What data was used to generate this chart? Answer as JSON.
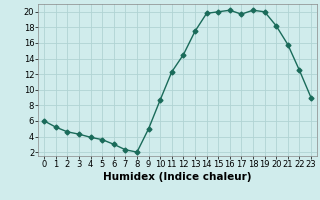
{
  "x": [
    0,
    1,
    2,
    3,
    4,
    5,
    6,
    7,
    8,
    9,
    10,
    11,
    12,
    13,
    14,
    15,
    16,
    17,
    18,
    19,
    20,
    21,
    22,
    23
  ],
  "y": [
    6,
    5.2,
    4.6,
    4.3,
    3.9,
    3.6,
    3.0,
    2.3,
    2.0,
    5.0,
    8.7,
    12.3,
    14.5,
    17.5,
    19.8,
    20.0,
    20.2,
    19.7,
    20.2,
    20.0,
    18.2,
    15.8,
    12.5,
    9.0
  ],
  "line_color": "#1a6b5a",
  "bg_color": "#d0ecec",
  "grid_color": "#b0d4d4",
  "xlabel": "Humidex (Indice chaleur)",
  "ylim": [
    1.5,
    21.0
  ],
  "xlim": [
    -0.5,
    23.5
  ],
  "yticks": [
    2,
    4,
    6,
    8,
    10,
    12,
    14,
    16,
    18,
    20
  ],
  "xticks": [
    0,
    1,
    2,
    3,
    4,
    5,
    6,
    7,
    8,
    9,
    10,
    11,
    12,
    13,
    14,
    15,
    16,
    17,
    18,
    19,
    20,
    21,
    22,
    23
  ],
  "marker": "D",
  "markersize": 2.5,
  "linewidth": 1.0,
  "xlabel_fontsize": 7.5,
  "tick_fontsize": 6.0
}
